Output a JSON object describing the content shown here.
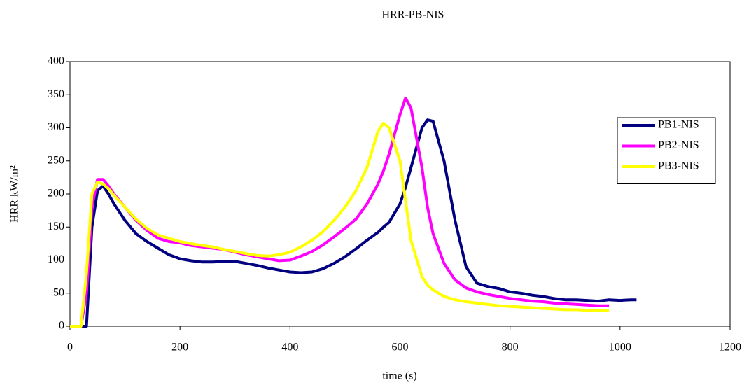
{
  "chart_data": {
    "type": "line",
    "title": "HRR-PB-NIS",
    "xlabel": "time (s)",
    "ylabel": "HRR kW/m²",
    "x": [
      0,
      20,
      30,
      40,
      50,
      60,
      70,
      80,
      100,
      120,
      140,
      160,
      180,
      200,
      220,
      240,
      260,
      280,
      300,
      320,
      340,
      360,
      380,
      400,
      420,
      440,
      460,
      480,
      500,
      520,
      540,
      560,
      570,
      580,
      600,
      610,
      620,
      640,
      650,
      660,
      680,
      700,
      720,
      740,
      760,
      780,
      800,
      820,
      840,
      860,
      880,
      900,
      920,
      940,
      960,
      980,
      1000,
      1020,
      1030
    ],
    "series": [
      {
        "name": "PB1-NIS",
        "color": "#000080",
        "values": [
          0,
          0,
          0,
          150,
          205,
          212,
          200,
          185,
          160,
          140,
          128,
          118,
          108,
          102,
          99,
          97,
          97,
          98,
          98,
          95,
          92,
          88,
          85,
          82,
          81,
          82,
          87,
          95,
          105,
          117,
          130,
          142,
          150,
          157,
          185,
          210,
          240,
          300,
          312,
          310,
          250,
          160,
          90,
          65,
          60,
          57,
          52,
          50,
          47,
          45,
          42,
          40,
          40,
          39,
          38,
          40,
          39,
          40,
          40
        ]
      },
      {
        "name": "PB2-NIS",
        "color": "#ff00ff",
        "values": [
          0,
          0,
          50,
          180,
          222,
          222,
          212,
          200,
          180,
          160,
          145,
          133,
          128,
          126,
          122,
          120,
          118,
          116,
          112,
          108,
          105,
          102,
          99,
          100,
          106,
          113,
          123,
          135,
          148,
          162,
          185,
          215,
          235,
          260,
          320,
          345,
          330,
          240,
          180,
          140,
          95,
          70,
          58,
          52,
          48,
          45,
          42,
          40,
          38,
          37,
          35,
          34,
          33,
          32,
          31,
          31,
          null,
          null,
          null
        ]
      },
      {
        "name": "PB3-NIS",
        "color": "#ffff00",
        "values": [
          0,
          0,
          80,
          200,
          218,
          215,
          208,
          198,
          180,
          162,
          148,
          138,
          133,
          128,
          125,
          122,
          120,
          116,
          113,
          110,
          107,
          106,
          108,
          112,
          120,
          130,
          143,
          160,
          180,
          205,
          240,
          295,
          307,
          300,
          250,
          190,
          130,
          75,
          62,
          55,
          45,
          40,
          37,
          35,
          33,
          31,
          30,
          29,
          28,
          27,
          26,
          25,
          25,
          24,
          24,
          23,
          null,
          null,
          null
        ]
      }
    ],
    "xlim": [
      0,
      1200
    ],
    "xticks": [
      0,
      200,
      400,
      600,
      800,
      1000,
      1200
    ],
    "ylim": [
      0,
      400
    ],
    "yticks": [
      0,
      50,
      100,
      150,
      200,
      250,
      300,
      350,
      400
    ],
    "grid": false,
    "legend": "upper right"
  }
}
